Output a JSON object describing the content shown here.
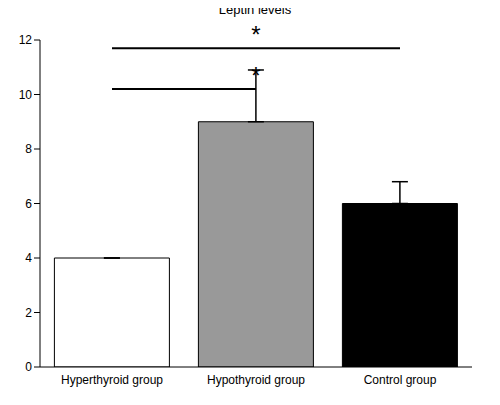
{
  "chart_data": {
    "type": "bar",
    "title": "Leptin levels",
    "categories": [
      "Hyperthyroid group",
      "Hypothyroid group",
      "Control group"
    ],
    "values": [
      4,
      9,
      6
    ],
    "errors": [
      0,
      1.9,
      0.8
    ],
    "colors": [
      "#ffffff",
      "#999999",
      "#000000"
    ],
    "ylim": [
      0,
      12
    ],
    "yticks": [
      0,
      2,
      4,
      6,
      8,
      10,
      12
    ],
    "grid": false,
    "annotations": [
      {
        "text": "*",
        "from": "Hyperthyroid group",
        "to": "Control group",
        "y": 11.7
      },
      {
        "text": "*",
        "from": "Hyperthyroid group",
        "to": "Hypothyroid group",
        "y": 10.2
      }
    ]
  }
}
